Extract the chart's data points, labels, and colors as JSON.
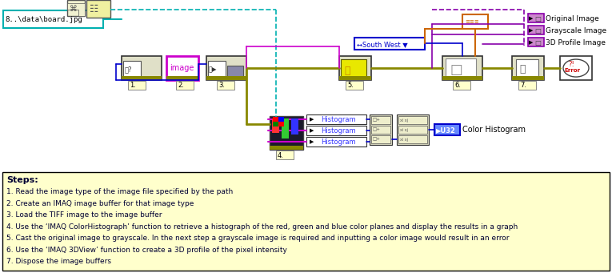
{
  "bg_color": "#f0f0f0",
  "steps_bg": "#ffffcc",
  "steps_border": "#000000",
  "steps_text_color": "#000033",
  "steps_title": "Steps:",
  "steps_lines": [
    "1. Read the image type of the image file specified by the path",
    "2. Create an IMAQ image buffer for that image type",
    "3. Load the TIFF image to the image buffer",
    "4. Use the ‘IMAQ ColorHistograph’ function to retrieve a histograph of the red, green and blue color planes and display the results in a graph",
    "5. Cast the original image to grayscale. In the next step a grayscale image is required and inputting a color image would result in an error",
    "6. Use the ‘IMAQ 3DView’ function to create a 3D profile of the pixel intensity",
    "7. Dispose the image buffers"
  ],
  "cyan_color": "#00b0b0",
  "magenta_color": "#cc00cc",
  "purple_color": "#8800aa",
  "olive_color": "#808000",
  "blue_wire": "#0000cc",
  "orange_color": "#cc6600",
  "block_bg": "#e8e8d8",
  "block_border": "#333333",
  "gold_stripe": "#888800",
  "label_bg": "#ffffcc",
  "label_border": "#888888",
  "ind_purple_bg": "#cc88cc",
  "ind_purple_border": "#660066",
  "hist_bg": "#ffffff",
  "hist_border": "#333333",
  "u32_bg": "#6688ff",
  "u32_border": "#0000cc"
}
